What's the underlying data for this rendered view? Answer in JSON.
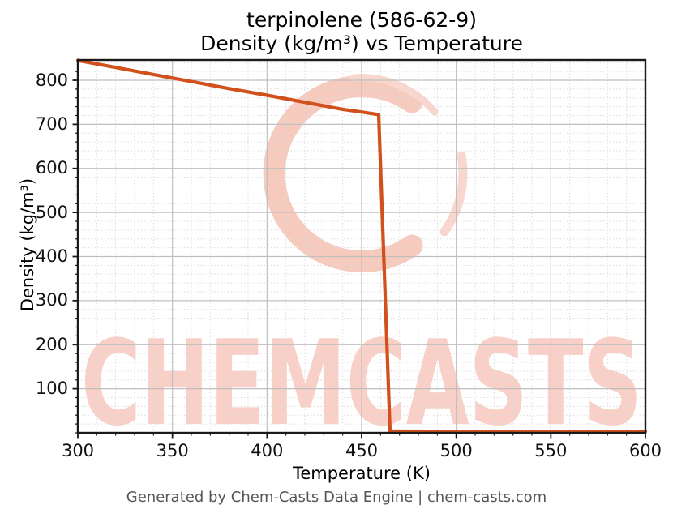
{
  "title_line1": "terpinolene (586-62-9)",
  "title_line2": "Density (kg/m³) vs Temperature",
  "footer": "Generated by Chem-Casts Data Engine | chem-casts.com",
  "watermark": {
    "text": "CHEMCASTS",
    "logo": "chemcasts-c-swirl-logo",
    "color": "#f7cabe",
    "text_color": "#f8d0c7"
  },
  "chart_data": {
    "type": "line",
    "title": "terpinolene (586-62-9)\nDensity (kg/m³) vs Temperature",
    "xlabel": "Temperature (K)",
    "ylabel": "Density (kg/m³)",
    "xlim": [
      300,
      600
    ],
    "ylim": [
      0,
      846
    ],
    "xticks": [
      300,
      350,
      400,
      450,
      500,
      550,
      600
    ],
    "yticks": [
      100,
      200,
      300,
      400,
      500,
      600,
      700,
      800
    ],
    "x_minor_step": 10,
    "y_minor_step": 20,
    "grid": true,
    "legend": "none",
    "line_color": "#d2501c",
    "series": [
      {
        "name": "density",
        "points": [
          [
            300,
            845
          ],
          [
            320,
            829
          ],
          [
            340,
            813
          ],
          [
            360,
            797
          ],
          [
            380,
            781
          ],
          [
            400,
            766
          ],
          [
            420,
            750
          ],
          [
            440,
            734
          ],
          [
            450,
            728
          ],
          [
            459,
            722
          ],
          [
            465,
            4
          ],
          [
            500,
            3
          ],
          [
            550,
            3
          ],
          [
            600,
            3
          ]
        ]
      }
    ]
  }
}
